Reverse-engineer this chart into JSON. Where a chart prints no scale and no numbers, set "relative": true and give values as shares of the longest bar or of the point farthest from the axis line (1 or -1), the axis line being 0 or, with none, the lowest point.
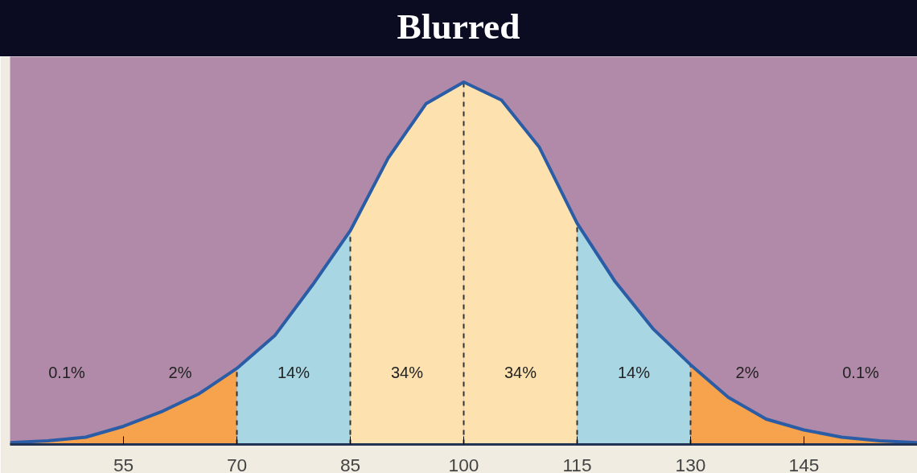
{
  "chart_data": {
    "type": "area",
    "title": "Blurred",
    "relative": true,
    "xlim": [
      40,
      160
    ],
    "xticks": [
      55,
      70,
      85,
      100,
      115,
      130,
      145
    ],
    "grid": false,
    "series": [
      {
        "color": "#f7a24c",
        "x": [
          40,
          45,
          50,
          55,
          60,
          65,
          70
        ],
        "values": [
          0.005,
          0.01,
          0.02,
          0.05,
          0.09,
          0.14,
          0.21
        ]
      },
      {
        "color": "#a9d6e3",
        "x": [
          70,
          75,
          80,
          85
        ],
        "values": [
          0.21,
          0.3,
          0.44,
          0.59
        ]
      },
      {
        "color": "#fde2b0",
        "x": [
          85,
          90,
          95,
          100
        ],
        "values": [
          0.59,
          0.79,
          0.94,
          1.0
        ]
      },
      {
        "color": "#fde2b0",
        "x": [
          100,
          105,
          110,
          115
        ],
        "values": [
          1.0,
          0.95,
          0.82,
          0.61
        ]
      },
      {
        "color": "#a9d6e3",
        "x": [
          115,
          120,
          125,
          130
        ],
        "values": [
          0.61,
          0.45,
          0.32,
          0.22
        ]
      },
      {
        "color": "#f7a24c",
        "x": [
          130,
          135,
          140,
          145,
          150,
          155,
          160
        ],
        "values": [
          0.22,
          0.13,
          0.07,
          0.04,
          0.02,
          0.01,
          0.005
        ]
      },
      {
        "type": "line",
        "color": "#2b5da6",
        "x": [
          40,
          45,
          50,
          55,
          60,
          65,
          70,
          75,
          80,
          85,
          90,
          95,
          100,
          105,
          110,
          115,
          120,
          125,
          130,
          135,
          140,
          145,
          150,
          155,
          160
        ],
        "values": [
          0.005,
          0.01,
          0.02,
          0.05,
          0.09,
          0.14,
          0.21,
          0.3,
          0.44,
          0.59,
          0.79,
          0.94,
          1.0,
          0.95,
          0.82,
          0.61,
          0.45,
          0.32,
          0.22,
          0.13,
          0.07,
          0.04,
          0.02,
          0.01,
          0.005
        ]
      }
    ],
    "ref_lines": [
      {
        "axis": "x",
        "value": 70,
        "color": "#333333",
        "line_style": "dashed"
      },
      {
        "axis": "x",
        "value": 85,
        "color": "#333333",
        "line_style": "dashed"
      },
      {
        "axis": "x",
        "value": 100,
        "color": "#333333",
        "line_style": "dashed"
      },
      {
        "axis": "x",
        "value": 115,
        "color": "#333333",
        "line_style": "dashed"
      },
      {
        "axis": "x",
        "value": 130,
        "color": "#333333",
        "line_style": "dashed"
      }
    ],
    "annotations": [
      "0.1%",
      "2%",
      "14%",
      "34%",
      "34%",
      "14%",
      "2%",
      "0.1%"
    ]
  }
}
